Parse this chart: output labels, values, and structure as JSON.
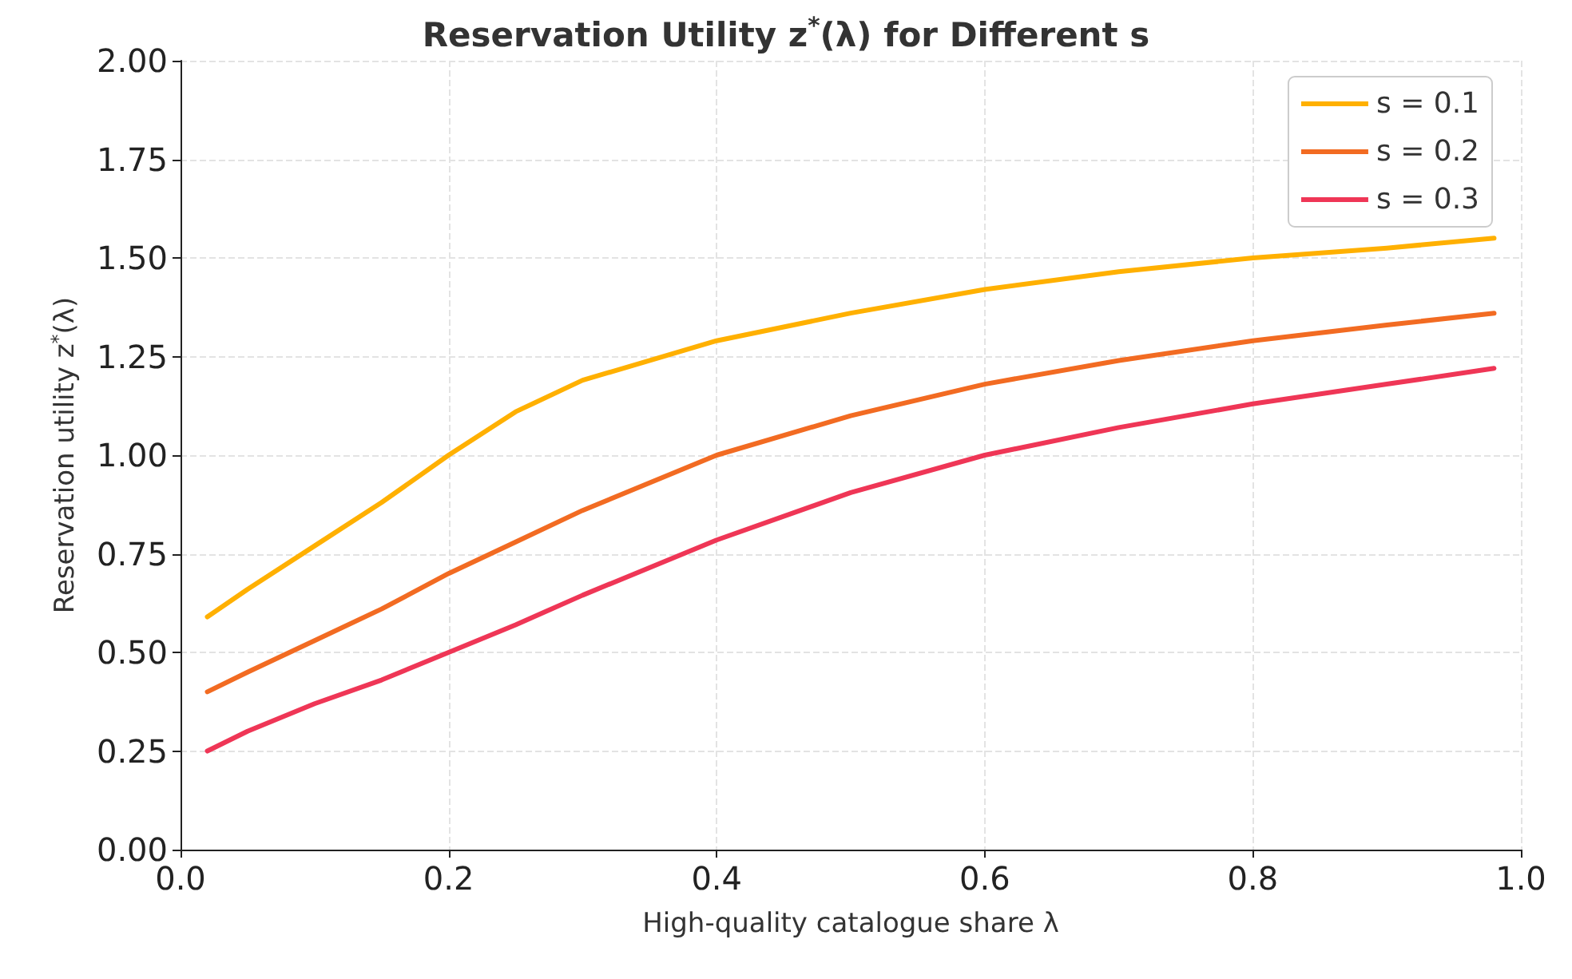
{
  "chart_data": {
    "type": "line",
    "title": "Reservation Utility z$^{*}$(λ) for Different s",
    "xlabel": "High-quality catalogue share λ",
    "ylabel": "Reservation utility z$^{*}$(λ)",
    "x": [
      0.02,
      0.05,
      0.1,
      0.15,
      0.2,
      0.25,
      0.3,
      0.4,
      0.5,
      0.6,
      0.7,
      0.8,
      0.9,
      0.98
    ],
    "series": [
      {
        "name": "s = 0.1",
        "color": "#ffb000",
        "values": [
          0.59,
          0.66,
          0.77,
          0.88,
          1.0,
          1.11,
          1.19,
          1.29,
          1.36,
          1.42,
          1.465,
          1.5,
          1.525,
          1.55
        ]
      },
      {
        "name": "s = 0.2",
        "color": "#f26b22",
        "values": [
          0.4,
          0.45,
          0.53,
          0.61,
          0.7,
          0.78,
          0.86,
          1.0,
          1.1,
          1.18,
          1.24,
          1.29,
          1.33,
          1.36
        ]
      },
      {
        "name": "s = 0.3",
        "color": "#ef3656",
        "values": [
          0.25,
          0.3,
          0.37,
          0.43,
          0.5,
          0.57,
          0.645,
          0.785,
          0.905,
          1.0,
          1.07,
          1.13,
          1.18,
          1.22
        ]
      }
    ],
    "xlim": [
      0,
      1
    ],
    "xticks": [
      {
        "value": 0,
        "label": "0.0"
      },
      {
        "value": 0.2,
        "label": "0.2"
      },
      {
        "value": 0.4,
        "label": "0.4"
      },
      {
        "value": 0.6,
        "label": "0.6"
      },
      {
        "value": 0.8,
        "label": "0.8"
      },
      {
        "value": 1,
        "label": "1.0"
      }
    ],
    "ylim": [
      0,
      2
    ],
    "yticks": [
      {
        "value": 0,
        "label": "0.00"
      },
      {
        "value": 0.25,
        "label": "0.25"
      },
      {
        "value": 0.5,
        "label": "0.50"
      },
      {
        "value": 0.75,
        "label": "0.75"
      },
      {
        "value": 1,
        "label": "1.00"
      },
      {
        "value": 1.25,
        "label": "1.25"
      },
      {
        "value": 1.5,
        "label": "1.50"
      },
      {
        "value": 1.75,
        "label": "1.75"
      },
      {
        "value": 2,
        "label": "2.00"
      }
    ],
    "grid": true,
    "legend": "top right",
    "marker": "none",
    "line_style": "solid"
  }
}
